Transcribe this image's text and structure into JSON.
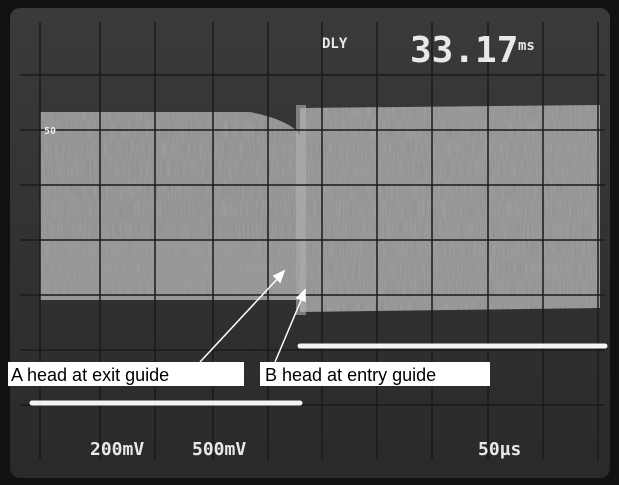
{
  "screen": {
    "delay_label": "DLY",
    "delay_value": "33.17",
    "delay_unit": "ms",
    "grid_label": "50",
    "channel_1": "200mV",
    "channel_2": "500mV",
    "timebase": "50µs"
  },
  "annotations": [
    "A head at exit guide",
    "B head at entry guide"
  ]
}
